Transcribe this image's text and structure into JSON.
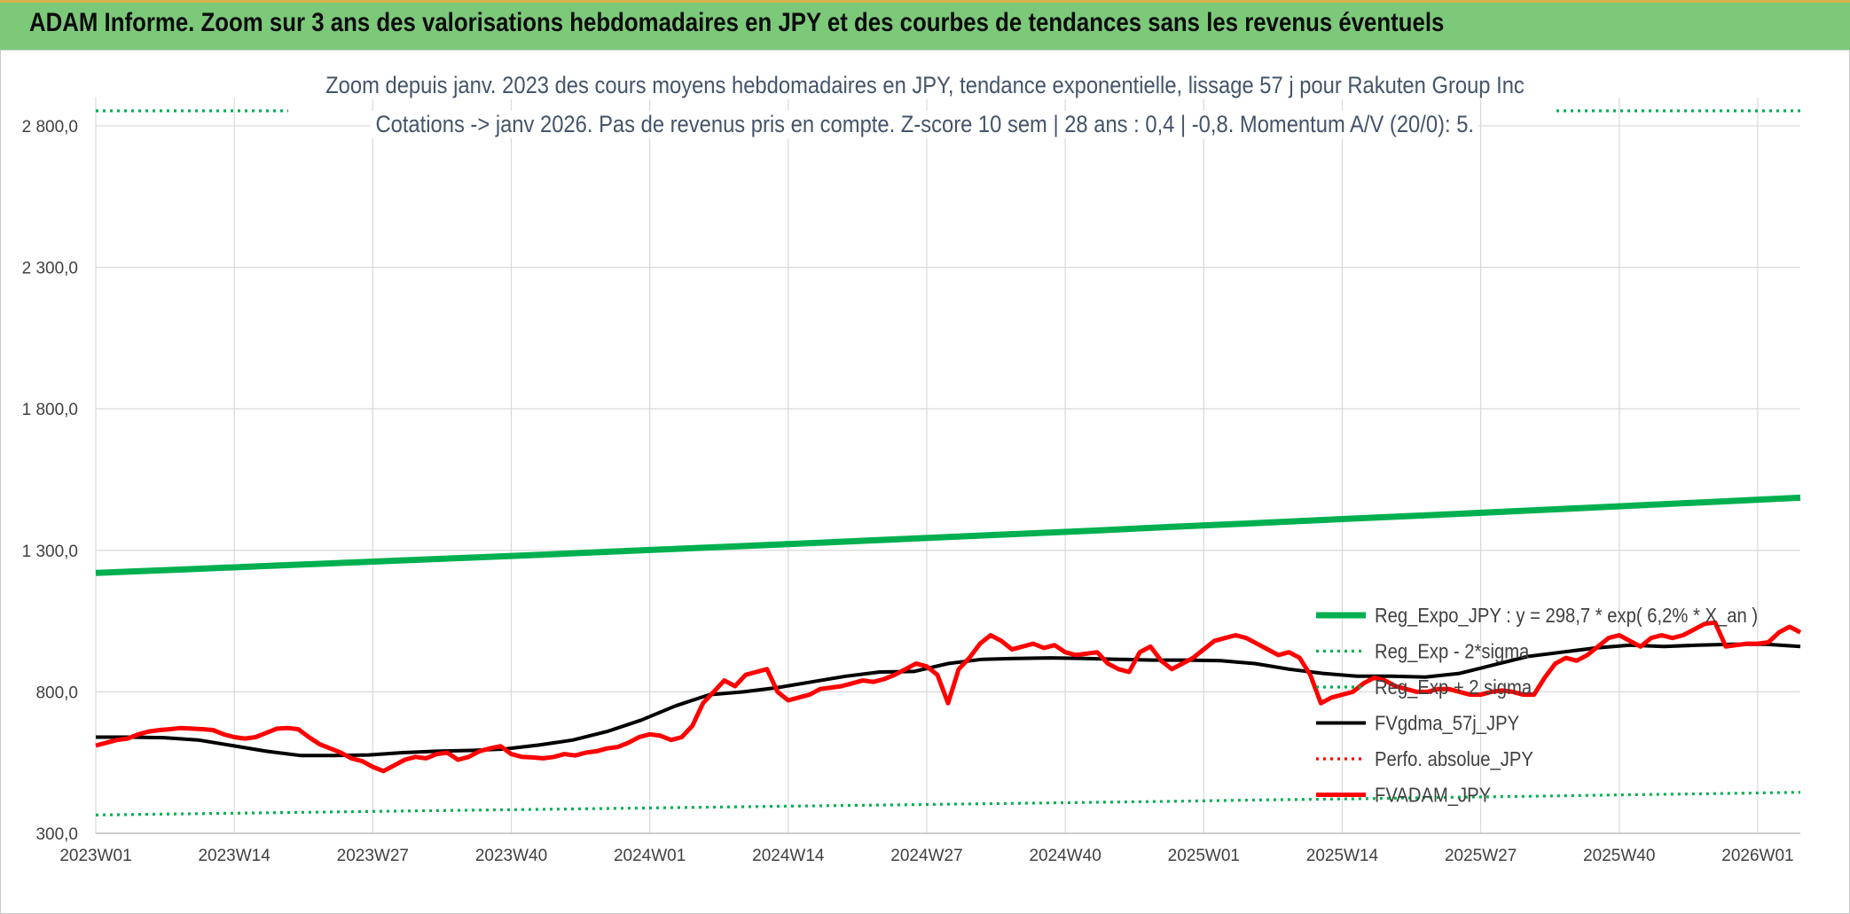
{
  "banner": {
    "title": "ADAM Informe. Zoom sur 3 ans des valorisations hebdomadaires en JPY et des courbes de tendances sans les revenus éventuels"
  },
  "chart_data": {
    "type": "line",
    "title_line1": "Zoom depuis janv. 2023 des cours moyens hebdomadaires en JPY, tendance exponentielle, lissage 57 j pour Rakuten Group Inc",
    "title_line2": "Cotations -> janv 2026. Pas de revenus pris en compte. Z-score 10 sem | 28 ans : 0,4 | -0,8. Momentum A/V (20/0): 5.",
    "ylim": [
      300,
      2900
    ],
    "y_ticks": [
      300,
      800,
      1300,
      1800,
      2300,
      2800
    ],
    "y_tick_labels": [
      "300,0",
      "800,0",
      "1 300,0",
      "1 800,0",
      "2 300,0",
      "2 800,0"
    ],
    "x_tick_labels": [
      "2023W01",
      "2023W14",
      "2023W27",
      "2023W40",
      "2024W01",
      "2024W14",
      "2024W27",
      "2024W40",
      "2025W01",
      "2025W14",
      "2025W27",
      "2025W40",
      "2026W01"
    ],
    "x_tick_index": [
      0,
      13,
      26,
      39,
      52,
      65,
      78,
      91,
      104,
      117,
      130,
      143,
      156
    ],
    "n_points": 161,
    "grid": true,
    "legend_position": "right",
    "series": [
      {
        "name": "Reg_Expo_JPY : y = 298,7 * exp( 6,2% *  X_an )",
        "style": "solid-thick",
        "color": "#00b050",
        "values": [
          1220,
          1233,
          1246,
          1259,
          1272,
          1285,
          1299,
          1312,
          1326,
          1340,
          1354,
          1368,
          1383,
          1397,
          1412,
          1426,
          1441,
          1456,
          1471,
          1486
        ]
      },
      {
        "name": "Reg_Exp - 2*sigma",
        "style": "dotted",
        "color": "#00b050",
        "values": [
          365,
          369,
          373,
          377,
          381,
          385,
          389,
          393,
          397,
          401,
          405,
          409,
          413,
          418,
          422,
          427,
          431,
          436,
          440,
          445
        ]
      },
      {
        "name": "Reg_Exp + 2 sigma",
        "style": "dotted",
        "color": "#00b050",
        "values": [
          2940,
          2940
        ]
      },
      {
        "name": "FVgdma_57j_JPY",
        "style": "solid",
        "color": "#000000",
        "values": [
          640,
          640,
          638,
          630,
          610,
          590,
          575,
          575,
          577,
          585,
          590,
          593,
          598,
          612,
          630,
          660,
          700,
          750,
          790,
          800,
          815,
          835,
          855,
          870,
          872,
          900,
          915,
          918,
          920,
          918,
          915,
          912,
          912,
          910,
          900,
          880,
          865,
          855,
          855,
          852,
          865,
          895,
          925,
          940,
          955,
          965,
          960,
          965,
          968,
          968,
          960
        ]
      },
      {
        "name": "Perfo. absolue_JPY",
        "style": "dotted",
        "color": "#ff0000",
        "values": []
      },
      {
        "name": "FVADAM_JPY",
        "style": "solid-thick",
        "color": "#ff0000",
        "values": [
          610,
          620,
          630,
          635,
          650,
          660,
          665,
          668,
          672,
          670,
          668,
          665,
          650,
          640,
          635,
          640,
          655,
          670,
          672,
          668,
          640,
          615,
          600,
          585,
          565,
          555,
          535,
          520,
          540,
          560,
          570,
          565,
          580,
          585,
          560,
          570,
          590,
          600,
          608,
          580,
          570,
          568,
          565,
          570,
          580,
          575,
          585,
          590,
          600,
          605,
          620,
          640,
          650,
          645,
          630,
          640,
          680,
          760,
          800,
          840,
          820,
          860,
          870,
          880,
          800,
          770,
          780,
          790,
          810,
          815,
          820,
          830,
          840,
          835,
          845,
          860,
          880,
          900,
          890,
          860,
          760,
          880,
          920,
          970,
          1000,
          980,
          950,
          960,
          970,
          955,
          965,
          940,
          930,
          935,
          940,
          900,
          880,
          870,
          940,
          960,
          910,
          880,
          900,
          920,
          950,
          980,
          990,
          1000,
          990,
          970,
          950,
          930,
          940,
          920,
          860,
          760,
          780,
          790,
          800,
          830,
          850,
          840,
          820,
          810,
          800,
          800,
          810,
          810,
          800,
          790,
          790,
          800,
          805,
          800,
          790,
          790,
          850,
          900,
          920,
          910,
          930,
          960,
          990,
          1000,
          980,
          960,
          990,
          1000,
          990,
          1000,
          1020,
          1040,
          1045,
          960,
          965,
          970,
          970,
          975,
          1010,
          1030,
          1010
        ]
      }
    ]
  }
}
